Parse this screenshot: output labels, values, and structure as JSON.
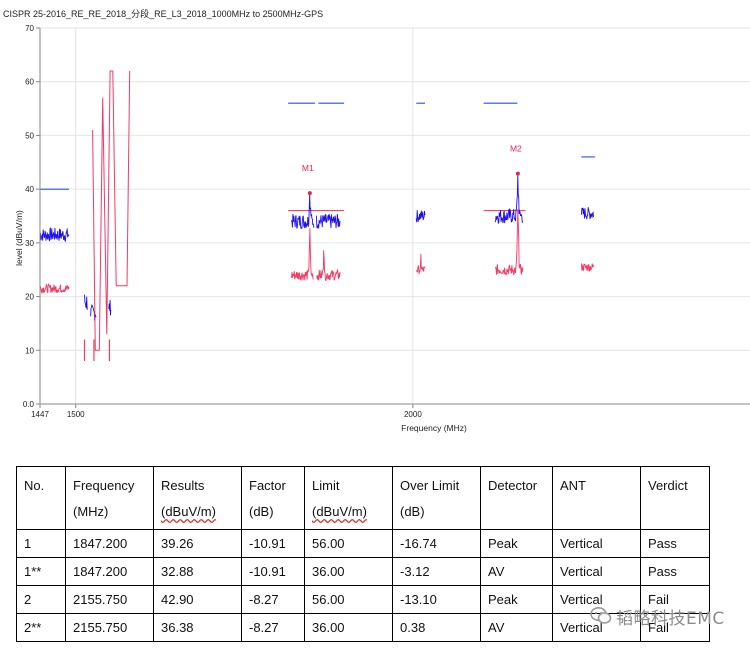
{
  "chart_data": {
    "type": "line",
    "title": "CISPR 25-2016_RE_RE_2018_分段_RE_L3_2018_1000MHz to 2500MHz-GPS",
    "xlabel": "Frequency (MHz)",
    "ylabel": "level (dBuV/m)",
    "xlim": [
      1447,
      2500
    ],
    "ylim": [
      0,
      70
    ],
    "x_ticks": [
      1447,
      1500,
      2000
    ],
    "y_ticks": [
      0,
      10,
      20,
      30,
      40,
      50,
      60,
      70
    ],
    "y_tick_labels": [
      "0.0",
      "10",
      "20",
      "30",
      "40",
      "50",
      "60",
      "70"
    ],
    "grid": true,
    "series": [
      {
        "role": "peak",
        "color": "#1e10ee",
        "segments": [
          {
            "x0": 1447,
            "x1": 1490,
            "base": 31.5,
            "amp": 1.3,
            "spike_x": null,
            "spike_y": null
          },
          {
            "x0": 1513,
            "x1": 1517,
            "base": 19,
            "amp": 2,
            "spike_x": null,
            "spike_y": null
          },
          {
            "x0": 1522,
            "x1": 1530,
            "base": 17,
            "amp": 1.5,
            "spike_x": null,
            "spike_y": null
          },
          {
            "x0": 1549,
            "x1": 1552,
            "base": 18,
            "amp": 1.5,
            "spike_x": null,
            "spike_y": null
          },
          {
            "x0": 1820,
            "x1": 1853,
            "base": 34,
            "amp": 1.4,
            "spike_x": 1847.2,
            "spike_y": 39.26
          },
          {
            "x0": 1857,
            "x1": 1892,
            "base": 34,
            "amp": 1.4,
            "spike_x": null,
            "spike_y": null
          },
          {
            "x0": 2005,
            "x1": 2018,
            "base": 35,
            "amp": 1.2,
            "spike_x": null,
            "spike_y": null
          },
          {
            "x0": 2122,
            "x1": 2163,
            "base": 35,
            "amp": 1.4,
            "spike_x": 2155.75,
            "spike_y": 42.9
          },
          {
            "x0": 2250,
            "x1": 2268,
            "base": 35.5,
            "amp": 1.2,
            "spike_x": null,
            "spike_y": null
          }
        ]
      },
      {
        "role": "average",
        "color": "#f23a63",
        "segments": [
          {
            "x0": 1447,
            "x1": 1490,
            "base": 21.5,
            "amp": 0.8,
            "spike_x": null,
            "spike_y": null
          },
          {
            "x0": 1820,
            "x1": 1852,
            "base": 24,
            "amp": 1.0,
            "spike_x": 1847.2,
            "spike_y": 32.88
          },
          {
            "x0": 1857,
            "x1": 1892,
            "base": 24,
            "amp": 1.0,
            "spike_x": 1868,
            "spike_y": 29
          },
          {
            "x0": 2005,
            "x1": 2018,
            "base": 25,
            "amp": 0.8,
            "spike_x": 2012,
            "spike_y": 28
          },
          {
            "x0": 2122,
            "x1": 2163,
            "base": 25,
            "amp": 1.0,
            "spike_x": 2155.75,
            "spike_y": 36.38
          },
          {
            "x0": 2250,
            "x1": 2268,
            "base": 25.5,
            "amp": 0.8,
            "spike_x": null,
            "spike_y": null
          }
        ]
      }
    ],
    "red_trace": [
      [
        1525,
        51
      ],
      [
        1529,
        10
      ],
      [
        1535,
        10
      ],
      [
        1540,
        57
      ],
      [
        1546,
        13
      ],
      [
        1551,
        62
      ],
      [
        1555,
        62
      ],
      [
        1560,
        22
      ],
      [
        1576,
        22
      ],
      [
        1580,
        62
      ],
      [
        1580,
        62
      ]
    ],
    "red_pulses": [
      [
        1513,
        8,
        12
      ],
      [
        1527,
        8,
        12
      ],
      [
        1550,
        8,
        12
      ]
    ],
    "limits": [
      {
        "color": "#2a4de8",
        "x0": 1447,
        "x1": 1490,
        "y": 40
      },
      {
        "color": "#2a4de8",
        "x0": 1815,
        "x1": 1855,
        "y": 56
      },
      {
        "color": "#2a4de8",
        "x0": 1860,
        "x1": 1898,
        "y": 56
      },
      {
        "color": "#2a4de8",
        "x0": 2005,
        "x1": 2018,
        "y": 56
      },
      {
        "color": "#2a4de8",
        "x0": 2105,
        "x1": 2155,
        "y": 56
      },
      {
        "color": "#2a4de8",
        "x0": 2250,
        "x1": 2270,
        "y": 46
      },
      {
        "color": "#e03155",
        "x0": 1815,
        "x1": 1898,
        "y": 36
      },
      {
        "color": "#e03155",
        "x0": 2105,
        "x1": 2167,
        "y": 36
      }
    ],
    "markers": [
      {
        "label": "M1",
        "x": 1847.2,
        "y": 39.26
      },
      {
        "label": "M2",
        "x": 2155.75,
        "y": 42.9
      }
    ]
  },
  "table": {
    "headers": [
      {
        "line1": "No.",
        "line2": ""
      },
      {
        "line1": "Frequency",
        "line2": "(MHz)"
      },
      {
        "line1": "Results",
        "line2": "(dBuV/m)"
      },
      {
        "line1": "Factor",
        "line2": "(dB)"
      },
      {
        "line1": "Limit",
        "line2": "(dBuV/m)"
      },
      {
        "line1": "Over Limit",
        "line2": "(dB)"
      },
      {
        "line1": "Detector",
        "line2": ""
      },
      {
        "line1": "ANT",
        "line2": ""
      },
      {
        "line1": "Verdict",
        "line2": ""
      }
    ],
    "rows": [
      [
        "1",
        "1847.200",
        "39.26",
        "-10.91",
        "56.00",
        "-16.74",
        "Peak",
        "Vertical",
        "Pass"
      ],
      [
        "1**",
        "1847.200",
        "32.88",
        "-10.91",
        "36.00",
        "-3.12",
        "AV",
        "Vertical",
        "Pass"
      ],
      [
        "2",
        "2155.750",
        "42.90",
        "-8.27",
        "56.00",
        "-13.10",
        "Peak",
        "Vertical",
        "Fail"
      ],
      [
        "2**",
        "2155.750",
        "36.38",
        "-8.27",
        "36.00",
        "0.38",
        "AV",
        "Vertical",
        "Fail"
      ]
    ]
  },
  "watermark": {
    "text": "韬略科技EMC",
    "icon": "wechat-icon"
  }
}
